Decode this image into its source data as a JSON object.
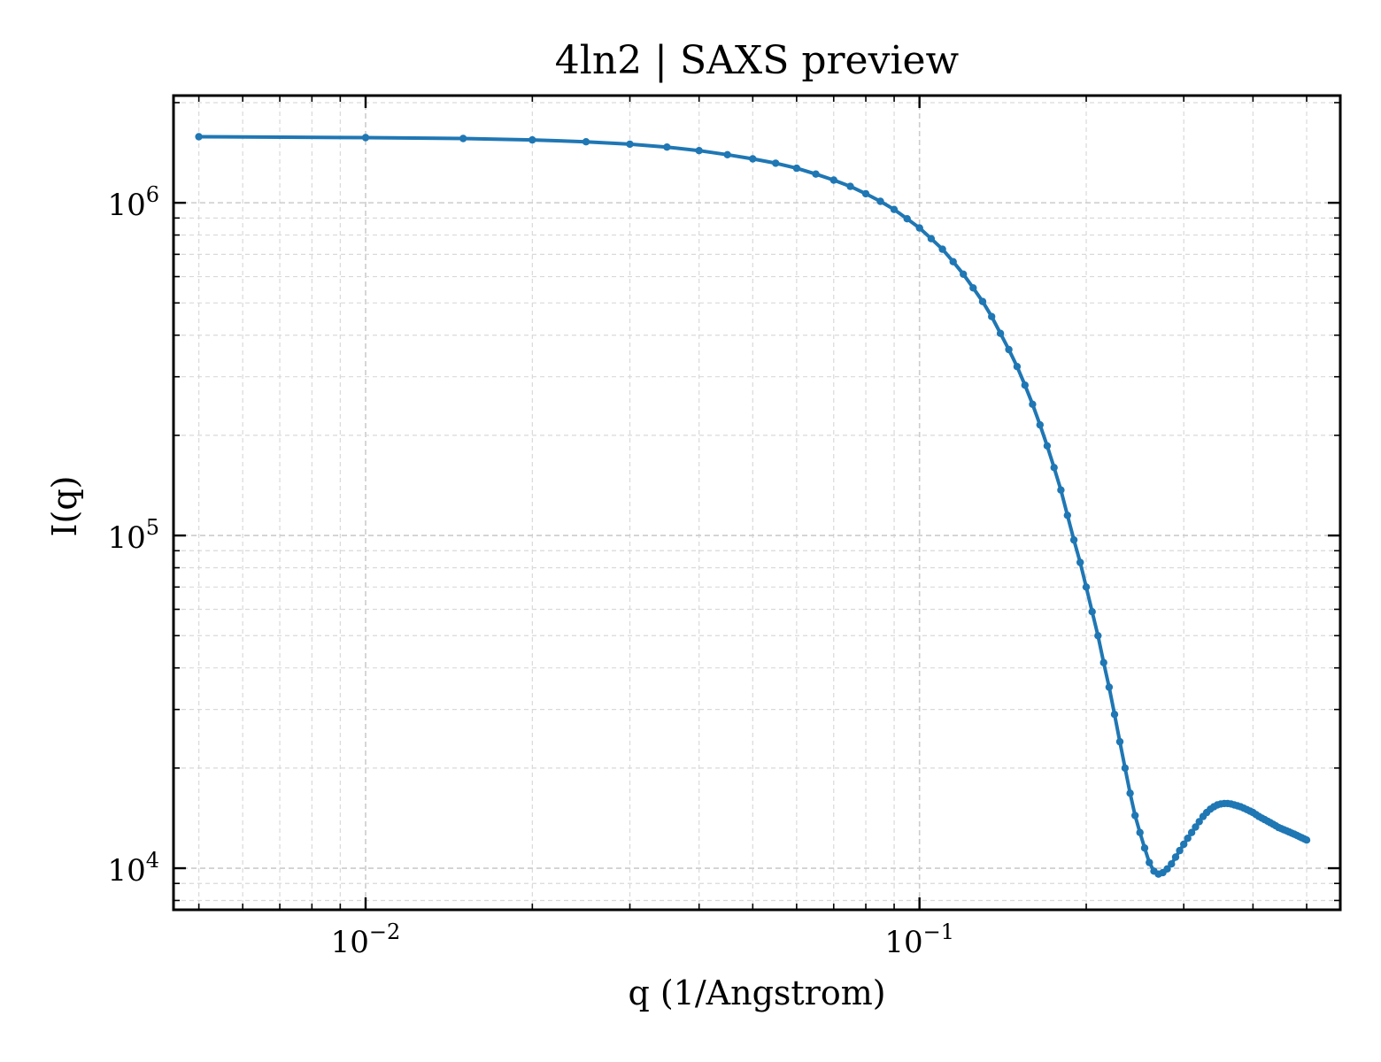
{
  "chart_data": {
    "type": "line",
    "title": "4ln2 | SAXS preview",
    "xlabel": "q (1/Angstrom)",
    "ylabel": "I(q)",
    "xscale": "log",
    "yscale": "log",
    "xlim": [
      0.0045,
      0.575
    ],
    "ylim": [
      7500,
      2100000
    ],
    "grid": true,
    "legend": "none",
    "color": "#1f77b4",
    "x_ticks": [
      {
        "value": 0.01,
        "base": "10",
        "exp": "−2"
      },
      {
        "value": 0.1,
        "base": "10",
        "exp": "−1"
      }
    ],
    "y_ticks": [
      {
        "value": 10000,
        "base": "10",
        "exp": "4"
      },
      {
        "value": 100000,
        "base": "10",
        "exp": "5"
      },
      {
        "value": 1000000,
        "base": "10",
        "exp": "6"
      }
    ],
    "series": [
      {
        "x": [
          0.005,
          0.01,
          0.015,
          0.02,
          0.025,
          0.03,
          0.035,
          0.04,
          0.045,
          0.05,
          0.055,
          0.06,
          0.065,
          0.07,
          0.075,
          0.08,
          0.085,
          0.09,
          0.095,
          0.1,
          0.105,
          0.11,
          0.115,
          0.12,
          0.125,
          0.13,
          0.135,
          0.14,
          0.145,
          0.15,
          0.155,
          0.16,
          0.165,
          0.17,
          0.175,
          0.18,
          0.185,
          0.19,
          0.195,
          0.2,
          0.205,
          0.21,
          0.215,
          0.22,
          0.225,
          0.23,
          0.235,
          0.24,
          0.245,
          0.25,
          0.255,
          0.26,
          0.265,
          0.27,
          0.275,
          0.28,
          0.285,
          0.29,
          0.295,
          0.3,
          0.305,
          0.31,
          0.315,
          0.32,
          0.325,
          0.33,
          0.335,
          0.34,
          0.345,
          0.35,
          0.355,
          0.36,
          0.365,
          0.37,
          0.375,
          0.38,
          0.385,
          0.39,
          0.395,
          0.4,
          0.405,
          0.41,
          0.415,
          0.42,
          0.425,
          0.43,
          0.435,
          0.44,
          0.445,
          0.45,
          0.455,
          0.46,
          0.465,
          0.47,
          0.475,
          0.48,
          0.485,
          0.49,
          0.495,
          0.5
        ],
        "y": [
          1580000,
          1570000,
          1560000,
          1545000,
          1525000,
          1500000,
          1470000,
          1435000,
          1395000,
          1355000,
          1315000,
          1270000,
          1220000,
          1170000,
          1120000,
          1065000,
          1010000,
          955000,
          895000,
          840000,
          780000,
          725000,
          665000,
          610000,
          555000,
          505000,
          455000,
          405000,
          362000,
          322000,
          283000,
          248000,
          215000,
          186000,
          160000,
          137000,
          115000,
          97000,
          83000,
          70000,
          59000,
          50000,
          41500,
          35000,
          29000,
          24000,
          20000,
          16800,
          14400,
          12800,
          11500,
          10400,
          9800,
          9600,
          9700,
          9950,
          10300,
          10800,
          11300,
          11800,
          12300,
          12800,
          13300,
          13800,
          14300,
          14700,
          15050,
          15300,
          15500,
          15600,
          15650,
          15650,
          15600,
          15500,
          15400,
          15300,
          15150,
          15000,
          14850,
          14700,
          14500,
          14300,
          14150,
          14000,
          13850,
          13700,
          13550,
          13400,
          13250,
          13150,
          13050,
          12950,
          12850,
          12750,
          12650,
          12550,
          12450,
          12350,
          12250,
          12150
        ]
      }
    ]
  }
}
